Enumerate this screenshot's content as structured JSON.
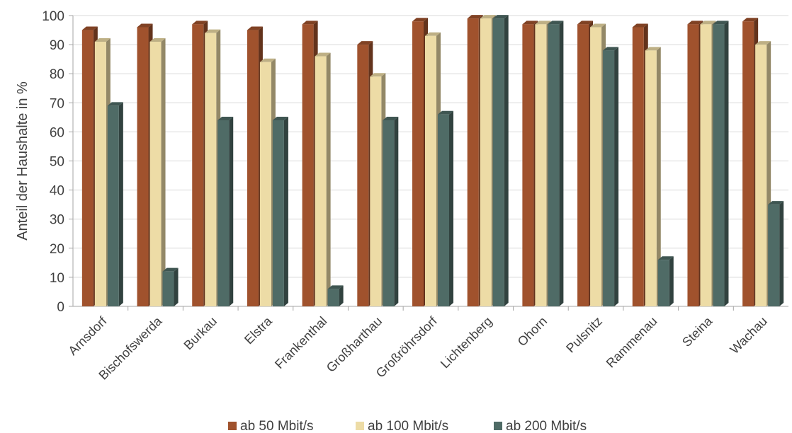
{
  "chart_data": {
    "type": "bar",
    "title": "",
    "xlabel": "",
    "ylabel": "Anteil der Haushalte in %",
    "ylim": [
      0,
      100
    ],
    "yticks": [
      0,
      10,
      20,
      30,
      40,
      50,
      60,
      70,
      80,
      90,
      100
    ],
    "grid": true,
    "legend_position": "bottom",
    "categories": [
      "Arnsdorf",
      "Bischofswerda",
      "Burkau",
      "Elstra",
      "Frankenthal",
      "Großharthau",
      "Großröhrsdorf",
      "Lichtenberg",
      "Ohorn",
      "Pulsnitz",
      "Rammenau",
      "Steina",
      "Wachau"
    ],
    "series": [
      {
        "name": "ab 50 Mbit/s",
        "color": "#A0522D",
        "values": [
          95,
          96,
          97,
          95,
          97,
          90,
          98,
          99,
          97,
          97,
          96,
          97,
          98
        ]
      },
      {
        "name": "ab 100 Mbit/s",
        "color": "#EDDCA6",
        "values": [
          91,
          91,
          94,
          84,
          86,
          79,
          93,
          99,
          97,
          96,
          88,
          97,
          90
        ]
      },
      {
        "name": "ab 200 Mbit/s",
        "color": "#4F6B66",
        "values": [
          69,
          12,
          64,
          64,
          6,
          64,
          66,
          99,
          97,
          88,
          16,
          97,
          35
        ]
      }
    ]
  }
}
